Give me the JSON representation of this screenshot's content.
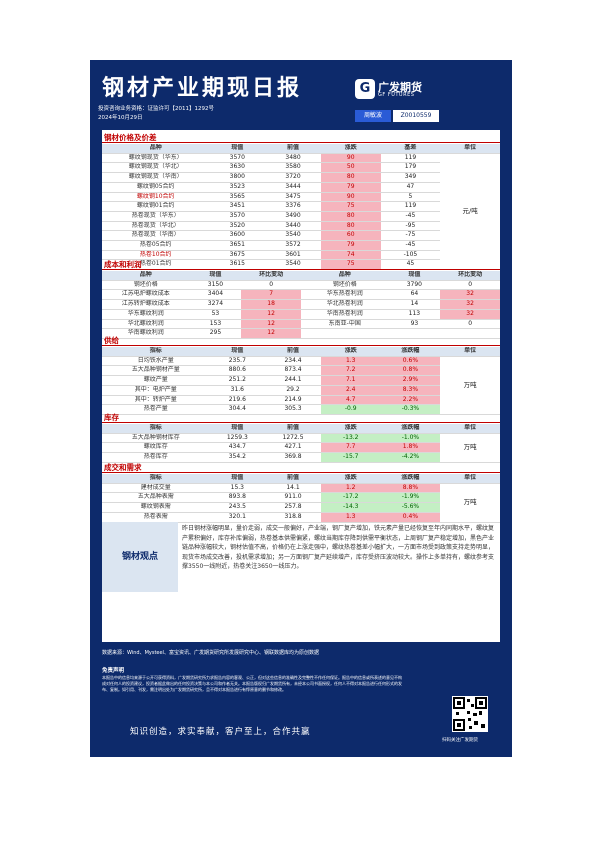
{
  "header": {
    "title": "钢材产业期现日报",
    "qualification": "投资咨询业务资格：证监许可【2011】1292号",
    "date": "2024年10月29日",
    "logo_cn": "广发期货",
    "logo_en": "GF FUTURES",
    "analyst_label": "周敏波",
    "analyst_id": "Z0010559"
  },
  "sections": {
    "price": "钢材价格及价差",
    "cost": "成本和利润",
    "supply": "供给",
    "inventory": "库存",
    "trade": "成交和需求"
  },
  "price_table": {
    "headers": [
      "品种",
      "现值",
      "前值",
      "涨跌",
      "基差",
      "单位"
    ],
    "unit": "元/吨",
    "rows": [
      {
        "name": "螺纹钢现货（华东）",
        "cur": "3570",
        "prev": "3480",
        "chg": "90",
        "basis": "119",
        "red": false
      },
      {
        "name": "螺纹钢现货（华北）",
        "cur": "3630",
        "prev": "3580",
        "chg": "50",
        "basis": "179",
        "red": false
      },
      {
        "name": "螺纹钢现货（华南）",
        "cur": "3800",
        "prev": "3720",
        "chg": "80",
        "basis": "349",
        "red": false
      },
      {
        "name": "螺纹钢05合约",
        "cur": "3523",
        "prev": "3444",
        "chg": "79",
        "basis": "47",
        "red": false
      },
      {
        "name": "螺纹钢10合约",
        "cur": "3565",
        "prev": "3475",
        "chg": "90",
        "basis": "5",
        "red": true
      },
      {
        "name": "螺纹钢01合约",
        "cur": "3451",
        "prev": "3376",
        "chg": "75",
        "basis": "119",
        "red": false
      },
      {
        "name": "热卷现货（华东）",
        "cur": "3570",
        "prev": "3490",
        "chg": "80",
        "basis": "-45",
        "red": false
      },
      {
        "name": "热卷现货（华北）",
        "cur": "3520",
        "prev": "3440",
        "chg": "80",
        "basis": "-95",
        "red": false
      },
      {
        "name": "热卷现货（华南）",
        "cur": "3600",
        "prev": "3540",
        "chg": "60",
        "basis": "-75",
        "red": false
      },
      {
        "name": "热卷05合约",
        "cur": "3651",
        "prev": "3572",
        "chg": "79",
        "basis": "-45",
        "red": false
      },
      {
        "name": "热卷10合约",
        "cur": "3675",
        "prev": "3601",
        "chg": "74",
        "basis": "-105",
        "red": true
      },
      {
        "name": "热卷01合约",
        "cur": "3615",
        "prev": "3540",
        "chg": "75",
        "basis": "45",
        "red": false
      }
    ]
  },
  "cost_table": {
    "headers": [
      "品种",
      "现值",
      "环比变动",
      "品种",
      "现值",
      "环比变动"
    ],
    "rows": [
      {
        "n1": "钢坯价格",
        "v1": "3150",
        "c1": "0",
        "c1s": "",
        "n2": "钢坯价格",
        "v2": "3790",
        "c2": "0",
        "c2s": ""
      },
      {
        "n1": "江苏电炉螺纹成本",
        "v1": "3404",
        "c1": "7",
        "c1s": "up",
        "n2": "华东热卷利润",
        "v2": "64",
        "c2": "32",
        "c2s": "up"
      },
      {
        "n1": "江苏转炉螺纹成本",
        "v1": "3274",
        "c1": "18",
        "c1s": "up",
        "n2": "华北热卷利润",
        "v2": "14",
        "c2": "32",
        "c2s": "up"
      },
      {
        "n1": "华东螺纹利润",
        "v1": "53",
        "c1": "12",
        "c1s": "up",
        "n2": "华南热卷利润",
        "v2": "113",
        "c2": "32",
        "c2s": "up"
      },
      {
        "n1": "华北螺纹利润",
        "v1": "153",
        "c1": "12",
        "c1s": "up",
        "n2": "东南亚-中国",
        "v2": "93",
        "c2": "0",
        "c2s": ""
      },
      {
        "n1": "华南螺纹利润",
        "v1": "295",
        "c1": "12",
        "c1s": "up",
        "n2": "",
        "v2": "",
        "c2": "",
        "c2s": "blank"
      }
    ]
  },
  "supply_table": {
    "headers": [
      "指标",
      "现值",
      "前值",
      "涨跌",
      "涨跌幅",
      "单位"
    ],
    "unit": "万吨",
    "rows": [
      {
        "name": "日均铁水产量",
        "cur": "235.7",
        "prev": "234.4",
        "chg": "1.3",
        "pct": "0.6%",
        "s": "up"
      },
      {
        "name": "五大品种钢材产量",
        "cur": "880.6",
        "prev": "873.4",
        "chg": "7.2",
        "pct": "0.8%",
        "s": "up"
      },
      {
        "name": "螺纹产量",
        "cur": "251.2",
        "prev": "244.1",
        "chg": "7.1",
        "pct": "2.9%",
        "s": "up"
      },
      {
        "name": "其中：电炉产量",
        "cur": "31.6",
        "prev": "29.2",
        "chg": "2.4",
        "pct": "8.3%",
        "s": "up"
      },
      {
        "name": "其中：转炉产量",
        "cur": "219.6",
        "prev": "214.9",
        "chg": "4.7",
        "pct": "2.2%",
        "s": "up"
      },
      {
        "name": "热卷产量",
        "cur": "304.4",
        "prev": "305.3",
        "chg": "-0.9",
        "pct": "-0.3%",
        "s": "dn"
      }
    ]
  },
  "inventory_table": {
    "headers": [
      "指标",
      "现值",
      "前值",
      "涨跌",
      "涨跌幅",
      "单位"
    ],
    "unit": "万吨",
    "rows": [
      {
        "name": "五大品种钢材库存",
        "cur": "1259.3",
        "prev": "1272.5",
        "chg": "-13.2",
        "pct": "-1.0%",
        "s": "dn"
      },
      {
        "name": "螺纹库存",
        "cur": "434.7",
        "prev": "427.1",
        "chg": "7.7",
        "pct": "1.8%",
        "s": "up"
      },
      {
        "name": "热卷库存",
        "cur": "354.2",
        "prev": "369.8",
        "chg": "-15.7",
        "pct": "-4.2%",
        "s": "dn"
      }
    ]
  },
  "trade_table": {
    "headers": [
      "指标",
      "现值",
      "前值",
      "涨跌",
      "涨跌幅",
      "单位"
    ],
    "unit": "万吨",
    "rows": [
      {
        "name": "建材成交量",
        "cur": "15.3",
        "prev": "14.1",
        "chg": "1.2",
        "pct": "8.8%",
        "s": "up"
      },
      {
        "name": "五大品种表需",
        "cur": "893.8",
        "prev": "911.0",
        "chg": "-17.2",
        "pct": "-1.9%",
        "s": "dn"
      },
      {
        "name": "螺纹钢表需",
        "cur": "243.5",
        "prev": "257.8",
        "chg": "-14.3",
        "pct": "-5.6%",
        "s": "dn"
      },
      {
        "name": "热卷表需",
        "cur": "320.1",
        "prev": "318.8",
        "chg": "1.3",
        "pct": "0.4%",
        "s": "up"
      }
    ]
  },
  "view": {
    "label": "钢材观点",
    "text": "昨日钢材涨幅明显，量价走弱，成交一般偏好，产业端，钢厂复产增加，铁元素产量已经恢复至年内同期水平，螺纹复产累积偏好，库存补库偏弱，热卷基本供需偏紧，螺纹当期库存降到供需平衡状态，上周钢厂复产稳定增加，黑色产业链品种涨幅较大，钢材估值不高，价格仍在上涨走强中，螺纹热卷基差小幅扩大，一方面市场受到政策支持走势明显，现货市场成交改善，投机需求增加；另一方面钢厂复产延续增产，库存受挤压波动较大。操作上多单持有，螺纹参考支撑3550一线附近，热卷关注3650一线压力。"
  },
  "footer": {
    "source": "数据来源：Wind、Mysteel、富宝资讯、广发期货研究所发展研究中心、钢联数据库均为原创数据",
    "disclaimer_title": "免责声明",
    "disclaimer": "本报告中的信息均来源于公开可获得资料，广发期货研究所力求报告内容的客观、公正，但对这些信息的准确性及完整性不作任何保证。报告中的信息或所表述的意见不构成对任何人的投资建议，投资者据此做出的任何投资决策与本公司和作者无关。本报告版权归广发期货所有，未经本公司书面授权，任何人不得对本报告进行任何形式的发布、复制。如引用、刊发，需注明出处为广发期货研究所，且不得对本报告进行有悖原意的删节和修改。",
    "slogan": "知识创造，求实奉献，客户至上，合作共赢",
    "qr_caption": "扫码关注广发期货"
  }
}
